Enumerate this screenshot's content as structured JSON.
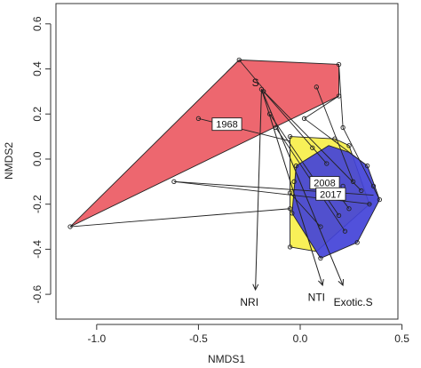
{
  "chart_data": {
    "type": "scatter",
    "title": "",
    "xlabel": "NMDS1",
    "ylabel": "NMDS2",
    "xlim": [
      -1.2,
      0.48
    ],
    "ylim": [
      -0.71,
      0.69
    ],
    "xticks": [
      -1.0,
      -0.5,
      0.0,
      0.5
    ],
    "yticks": [
      -0.6,
      -0.4,
      -0.2,
      0.0,
      0.2,
      0.4,
      0.6
    ],
    "tick_labels_x": [
      "-1.0",
      "-0.5",
      "0.0",
      "0.5"
    ],
    "tick_labels_y": [
      "-0.6",
      "-0.4",
      "-0.2",
      "0.0",
      "0.2",
      "0.4",
      "0.6"
    ],
    "hulls": [
      {
        "group": "1968",
        "color": "#ec5a63",
        "vertices": [
          [
            -1.13,
            -0.3
          ],
          [
            -0.3,
            0.44
          ],
          [
            0.19,
            0.42
          ],
          [
            0.19,
            0.28
          ]
        ]
      },
      {
        "group": "2008",
        "color": "#f7ef4a",
        "vertices": [
          [
            -0.05,
            0.1
          ],
          [
            0.17,
            0.09
          ],
          [
            0.24,
            0.06
          ],
          [
            0.34,
            -0.2
          ],
          [
            0.08,
            -0.41
          ],
          [
            -0.05,
            -0.39
          ]
        ]
      },
      {
        "group": "2017",
        "color": "#4242d8",
        "vertices": [
          [
            -0.02,
            -0.03
          ],
          [
            0.14,
            0.06
          ],
          [
            0.24,
            0.03
          ],
          [
            0.33,
            -0.03
          ],
          [
            0.39,
            -0.18
          ],
          [
            0.28,
            -0.37
          ],
          [
            0.1,
            -0.44
          ],
          [
            -0.04,
            -0.24
          ]
        ]
      }
    ],
    "points": [
      [
        -1.13,
        -0.3
      ],
      [
        -0.3,
        0.44
      ],
      [
        0.19,
        0.42
      ],
      [
        0.19,
        0.28
      ],
      [
        -0.5,
        0.18
      ],
      [
        -0.62,
        -0.1
      ],
      [
        -0.19,
        0.31
      ],
      [
        -0.18,
        0.3
      ],
      [
        -0.15,
        0.2
      ],
      [
        -0.12,
        0.14
      ],
      [
        0.02,
        0.18
      ],
      [
        0.08,
        0.32
      ],
      [
        0.21,
        0.14
      ],
      [
        -0.05,
        0.1
      ],
      [
        0.17,
        0.09
      ],
      [
        0.24,
        0.06
      ],
      [
        -0.02,
        -0.03
      ],
      [
        0.13,
        -0.02
      ],
      [
        0.06,
        0.05
      ],
      [
        -0.03,
        -0.1
      ],
      [
        0.14,
        -0.1
      ],
      [
        0.26,
        -0.1
      ],
      [
        0.33,
        -0.03
      ],
      [
        0.36,
        -0.12
      ],
      [
        0.39,
        -0.18
      ],
      [
        0.34,
        -0.2
      ],
      [
        0.24,
        -0.22
      ],
      [
        0.28,
        -0.37
      ],
      [
        -0.04,
        -0.24
      ],
      [
        0.1,
        -0.44
      ],
      [
        -0.05,
        -0.39
      ],
      [
        0.1,
        -0.3
      ],
      [
        0.19,
        -0.25
      ],
      [
        0.22,
        -0.32
      ],
      [
        0.21,
        -0.12
      ],
      [
        0.3,
        -0.14
      ],
      [
        -0.05,
        -0.15
      ],
      [
        -0.05,
        -0.22
      ]
    ],
    "segments": [
      [
        [
          -0.62,
          -0.1
        ],
        [
          0.36,
          -0.16
        ]
      ],
      [
        [
          -1.13,
          -0.3
        ],
        [
          -0.05,
          -0.22
        ]
      ],
      [
        [
          -0.5,
          0.18
        ],
        [
          -0.05,
          0.08
        ]
      ],
      [
        [
          -0.3,
          0.44
        ],
        [
          -0.17,
          0.3
        ]
      ],
      [
        [
          0.19,
          0.28
        ],
        [
          0.02,
          0.18
        ]
      ],
      [
        [
          0.19,
          0.42
        ],
        [
          0.21,
          0.14
        ]
      ],
      [
        [
          -0.18,
          0.3
        ],
        [
          0.13,
          -0.02
        ]
      ],
      [
        [
          -0.15,
          0.2
        ],
        [
          0.19,
          -0.25
        ]
      ],
      [
        [
          -0.12,
          0.14
        ],
        [
          0.22,
          -0.32
        ]
      ],
      [
        [
          0.08,
          0.32
        ],
        [
          0.26,
          -0.1
        ]
      ],
      [
        [
          0.02,
          0.18
        ],
        [
          0.33,
          -0.03
        ]
      ],
      [
        [
          0.21,
          0.14
        ],
        [
          0.39,
          -0.18
        ]
      ],
      [
        [
          -0.19,
          0.31
        ],
        [
          0.3,
          -0.14
        ]
      ],
      [
        [
          -0.05,
          -0.15
        ],
        [
          0.1,
          -0.3
        ]
      ],
      [
        [
          -0.62,
          -0.1
        ],
        [
          0.35,
          -0.2
        ]
      ],
      [
        [
          0.14,
          -0.1
        ],
        [
          0.24,
          -0.22
        ]
      ]
    ],
    "vectors": [
      {
        "label": "NRI",
        "to": [
          -0.22,
          -0.58
        ],
        "label_pos": [
          -0.25,
          -0.65
        ]
      },
      {
        "label": "NTI",
        "to": [
          0.11,
          -0.56
        ],
        "label_pos": [
          0.08,
          -0.63
        ]
      },
      {
        "label": "Exotic.S",
        "to": [
          0.21,
          -0.56
        ],
        "label_pos": [
          0.26,
          -0.65
        ]
      }
    ],
    "vector_origin": [
      -0.19,
      0.31
    ],
    "annotations": [
      {
        "text": "S",
        "x": -0.22,
        "y": 0.34,
        "boxed": false
      },
      {
        "text": "1968",
        "x": -0.36,
        "y": 0.155,
        "boxed": true
      },
      {
        "text": "2008",
        "x": 0.12,
        "y": -0.105,
        "boxed": true
      },
      {
        "text": "2017",
        "x": 0.15,
        "y": -0.155,
        "boxed": true
      }
    ]
  }
}
